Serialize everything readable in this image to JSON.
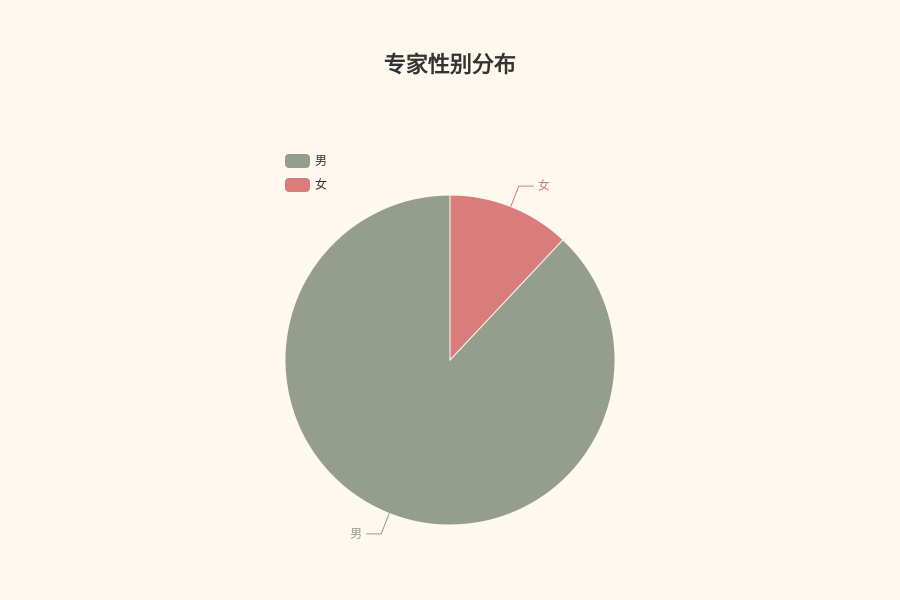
{
  "chart_data": {
    "type": "pie",
    "title": "专家性别分布",
    "categories": [
      "男",
      "女"
    ],
    "values": [
      88,
      12
    ],
    "colors": [
      "#949e8b",
      "#d87c7c"
    ],
    "legend": "top-left"
  }
}
